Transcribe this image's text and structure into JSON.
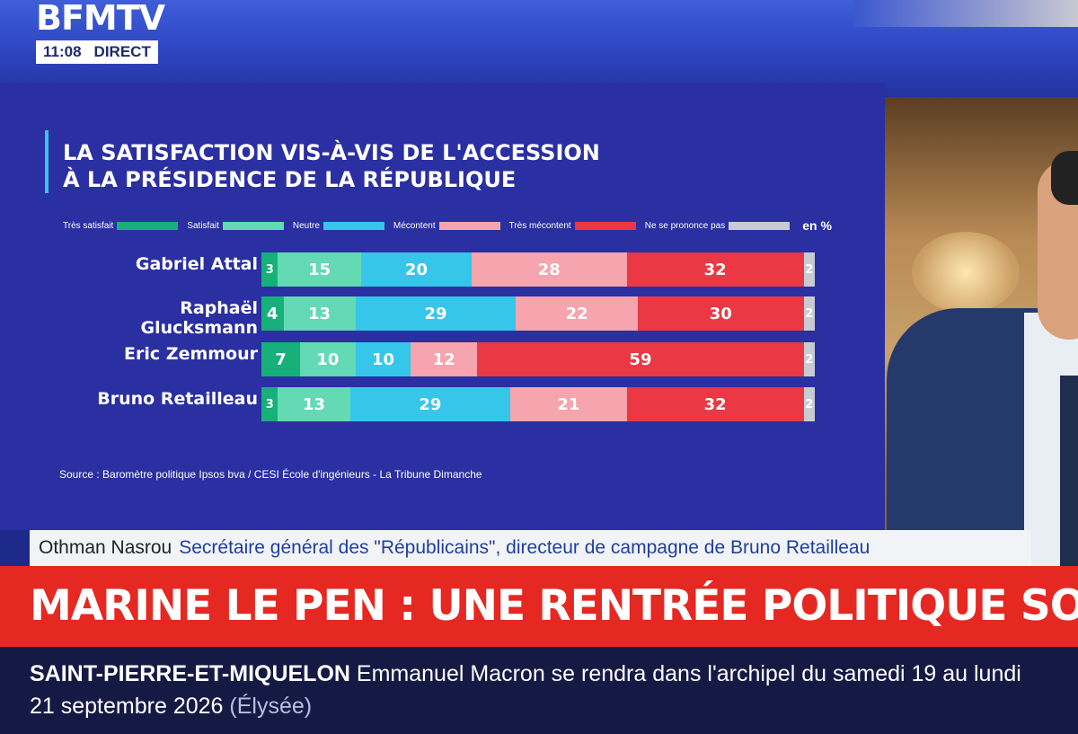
{
  "channel": {
    "logo": "BFMTV",
    "time": "11:08",
    "live_label": "DIRECT"
  },
  "chart_data": {
    "type": "bar",
    "orientation": "horizontal-stacked",
    "title_lines": [
      "LA SATISFACTION VIS-À-VIS DE L'ACCESSION",
      "À LA PRÉSIDENCE DE LA RÉPUBLIQUE"
    ],
    "unit": "en %",
    "categories": [
      "Gabriel Attal",
      "Raphaël Glucksmann",
      "Eric Zemmour",
      "Bruno Retailleau"
    ],
    "series": [
      {
        "name": "Très satisfait",
        "color": "#17b07a",
        "values": [
          3,
          4,
          7,
          3
        ]
      },
      {
        "name": "Satisfait",
        "color": "#63d9b4",
        "values": [
          15,
          13,
          10,
          13
        ]
      },
      {
        "name": "Neutre",
        "color": "#35c6ea",
        "values": [
          20,
          29,
          10,
          29
        ]
      },
      {
        "name": "Mécontent",
        "color": "#f6a4ad",
        "values": [
          28,
          22,
          12,
          21
        ]
      },
      {
        "name": "Très mécontent",
        "color": "#ea3845",
        "values": [
          32,
          30,
          59,
          32
        ]
      },
      {
        "name": "Ne se prononce pas",
        "color": "#c9cbd3",
        "values": [
          2,
          2,
          2,
          2
        ]
      }
    ],
    "xlim": [
      0,
      100
    ],
    "legend_position": "top",
    "source": "Source : Baromètre politique Ipsos bva / CESI École d'ingénieurs - La Tribune Dimanche"
  },
  "lower_third": {
    "name": "Othman Nasrou",
    "role": "Secrétaire général des \"Républicains\", directeur de campagne de Bruno Retailleau"
  },
  "headline": "MARINE LE PEN : UNE RENTRÉE POLITIQUE SOUS TENSION",
  "ticker": {
    "kicker": "SAINT-PIERRE-ET-MIQUELON",
    "text": "Emmanuel Macron se rendra dans l'archipel du samedi 19 au lundi 21 septembre 2026",
    "source": "(Élysée)"
  }
}
